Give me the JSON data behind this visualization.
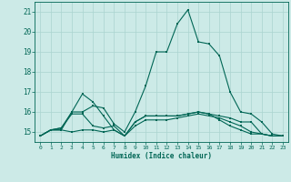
{
  "background_color": "#cceae7",
  "grid_color": "#aad4d0",
  "line_color": "#006655",
  "xlabel": "Humidex (Indice chaleur)",
  "xlim": [
    -0.5,
    23.5
  ],
  "ylim": [
    14.5,
    21.5
  ],
  "yticks": [
    15,
    16,
    17,
    18,
    19,
    20,
    21
  ],
  "xticks": [
    0,
    1,
    2,
    3,
    4,
    5,
    6,
    7,
    8,
    9,
    10,
    11,
    12,
    13,
    14,
    15,
    16,
    17,
    18,
    19,
    20,
    21,
    22,
    23
  ],
  "series": [
    [
      14.8,
      15.1,
      15.1,
      15.0,
      15.1,
      15.1,
      15.0,
      15.1,
      14.8,
      15.3,
      15.6,
      15.6,
      15.6,
      15.7,
      15.8,
      15.9,
      15.8,
      15.7,
      15.5,
      15.3,
      15.0,
      14.9,
      14.8,
      14.8
    ],
    [
      14.8,
      15.1,
      15.1,
      16.0,
      16.9,
      16.5,
      15.8,
      15.1,
      14.8,
      15.5,
      15.8,
      15.8,
      15.8,
      15.8,
      15.9,
      16.0,
      15.9,
      15.8,
      15.7,
      15.5,
      15.5,
      14.9,
      14.8,
      14.8
    ],
    [
      14.8,
      15.1,
      15.2,
      16.0,
      16.0,
      16.3,
      16.2,
      15.4,
      15.0,
      16.0,
      17.3,
      19.0,
      19.0,
      20.4,
      21.1,
      19.5,
      19.4,
      18.8,
      17.0,
      16.0,
      15.9,
      15.5,
      14.9,
      14.8
    ],
    [
      14.8,
      15.1,
      15.2,
      15.9,
      15.9,
      15.3,
      15.2,
      15.3,
      14.8,
      15.5,
      15.8,
      15.8,
      15.8,
      15.8,
      15.9,
      16.0,
      15.9,
      15.6,
      15.3,
      15.1,
      14.9,
      14.9,
      14.8,
      14.8
    ]
  ]
}
